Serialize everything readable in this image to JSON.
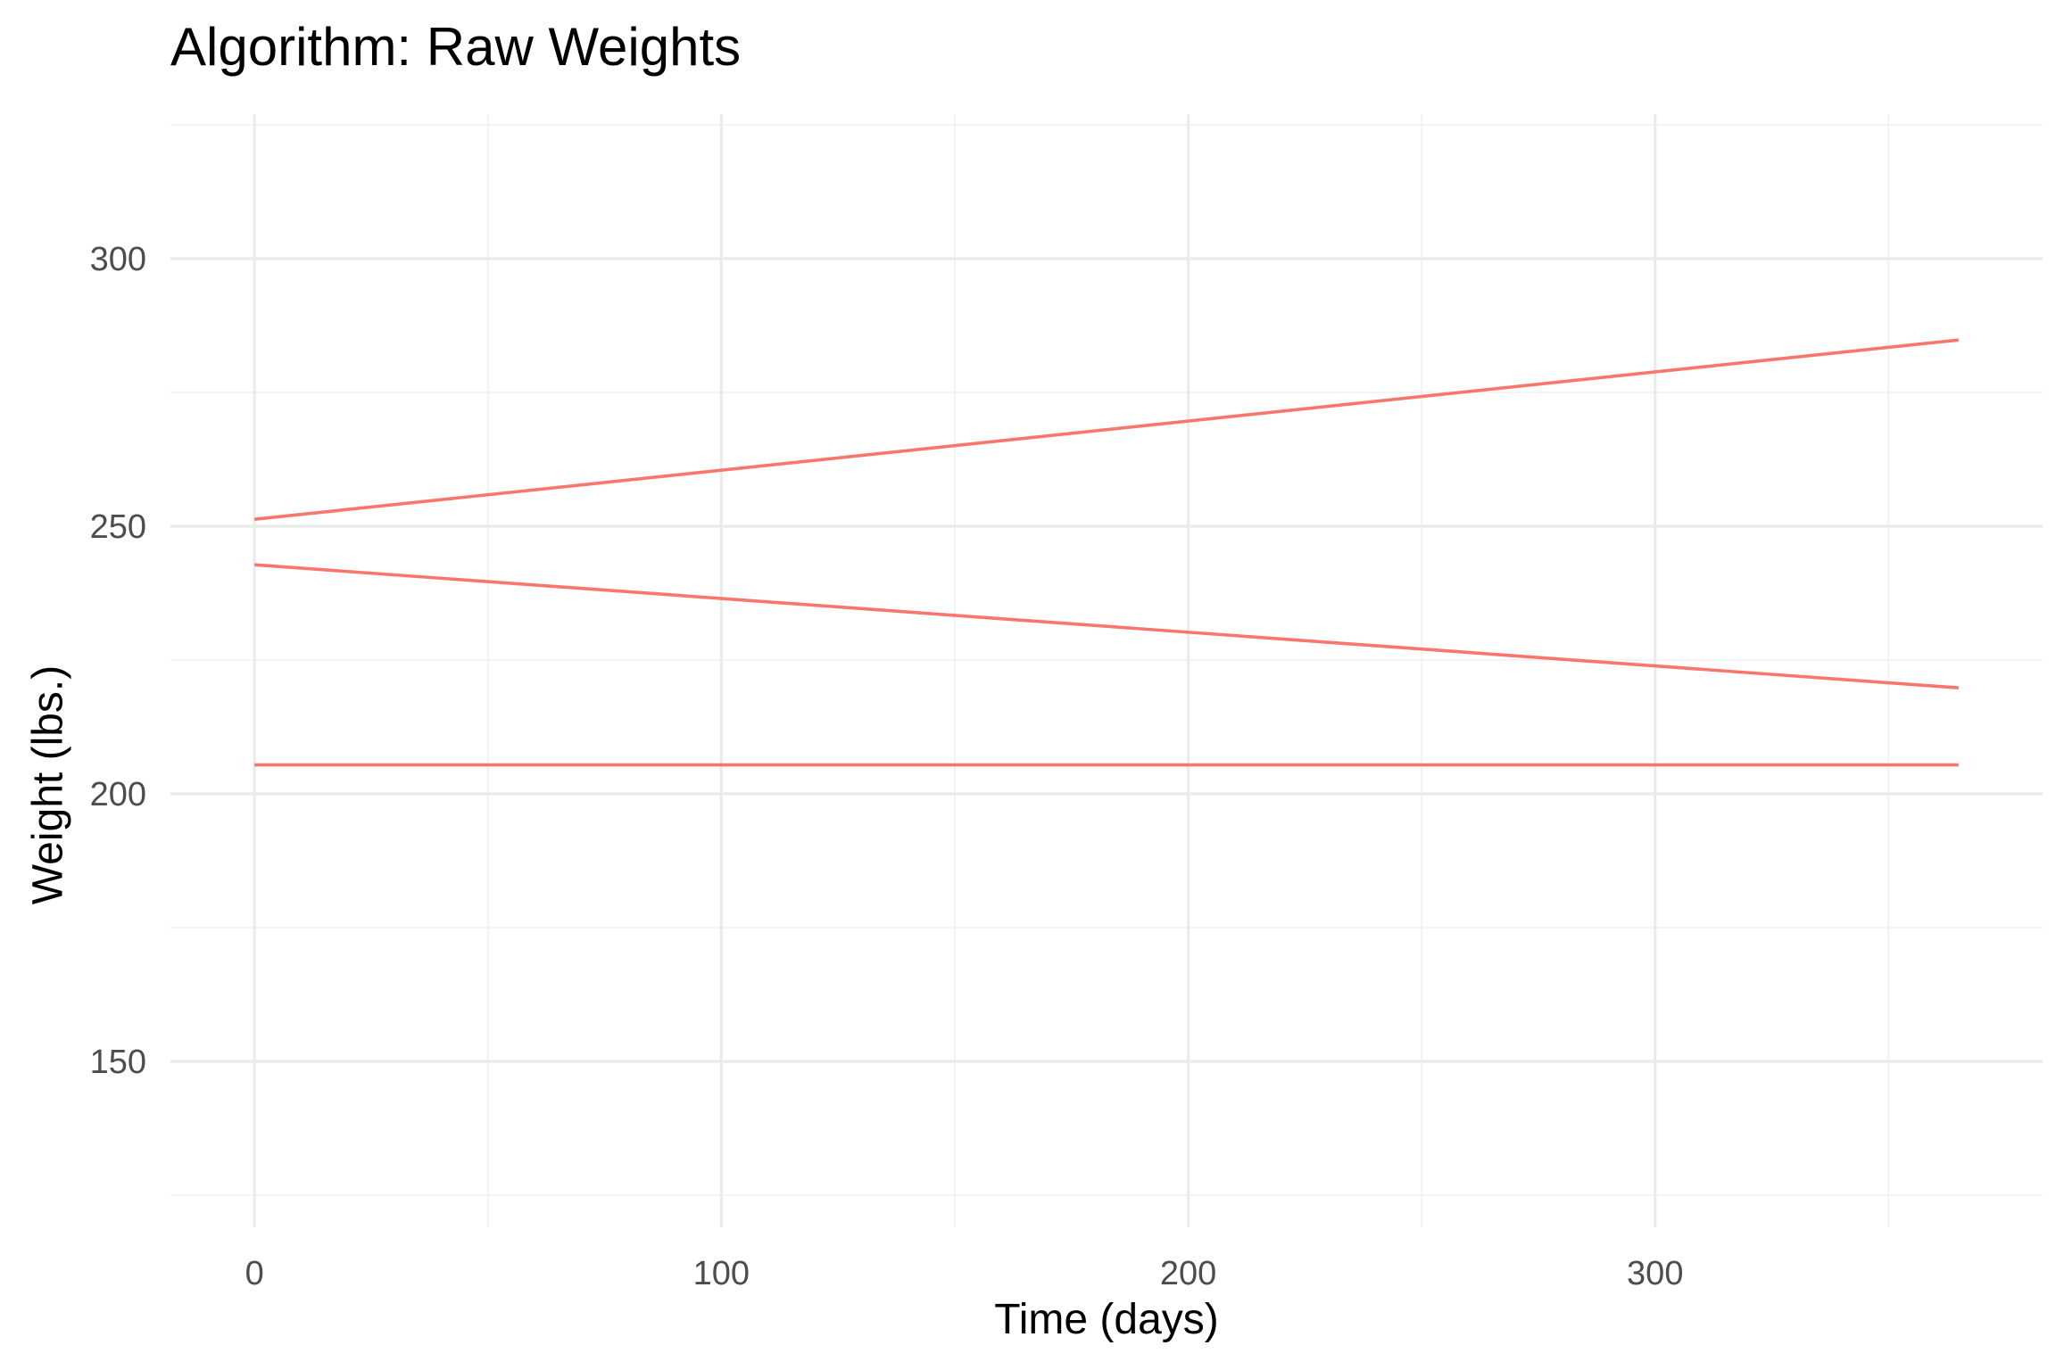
{
  "chart_data": {
    "type": "line",
    "title": "Algorithm: Raw Weights",
    "xlabel": "Time (days)",
    "ylabel": "Weight (lbs.)",
    "xlim": [
      -18,
      383
    ],
    "ylim": [
      119,
      327
    ],
    "x_ticks": [
      0,
      100,
      200,
      300
    ],
    "y_ticks": [
      150,
      200,
      250,
      300
    ],
    "x_tick_labels": [
      "0",
      "100",
      "200",
      "300"
    ],
    "y_tick_labels": [
      "150",
      "200",
      "250",
      "300"
    ],
    "x_minor_ticks": [
      50,
      150,
      250,
      350
    ],
    "y_minor_ticks": [
      125,
      175,
      225,
      275,
      325
    ],
    "grid": true,
    "legend": "none",
    "line_color": "#F8766D",
    "series": [
      {
        "x": [
          0,
          365
        ],
        "values": [
          251.3,
          284.8
        ]
      },
      {
        "x": [
          0,
          365
        ],
        "values": [
          242.8,
          219.8
        ]
      },
      {
        "x": [
          0,
          365
        ],
        "values": [
          205.4,
          205.4
        ]
      }
    ]
  }
}
